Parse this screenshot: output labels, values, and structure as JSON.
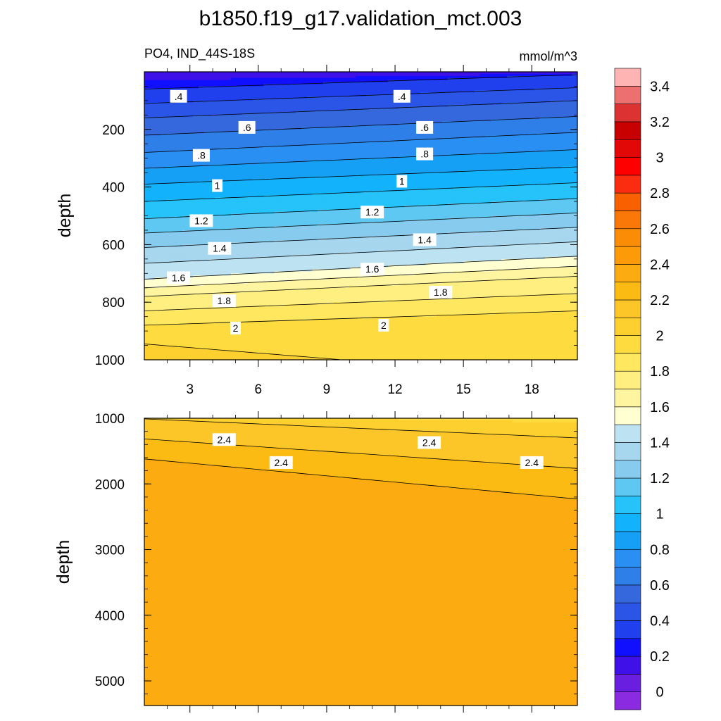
{
  "chart_data": {
    "type": "heatmap",
    "title": "b1850.f19_g17.validation_mct.003",
    "subtitle_left": "PO4, IND_44S-18S",
    "subtitle_right": "mmol/m^3",
    "xlim": [
      1,
      20
    ],
    "x_ticks": [
      "3",
      "6",
      "9",
      "12",
      "15",
      "18"
    ],
    "x_tick_values": [
      3,
      6,
      9,
      12,
      15,
      18
    ],
    "panels": [
      {
        "ylabel": "depth",
        "ylim": [
          0,
          1000
        ],
        "y_ticks": [
          "200",
          "400",
          "600",
          "800",
          "1000"
        ],
        "y_tick_values": [
          200,
          400,
          600,
          800,
          1000
        ],
        "contour_labels": [
          {
            "text": ".4",
            "x": 2.5,
            "y": 85
          },
          {
            "text": ".4",
            "x": 12.3,
            "y": 85
          },
          {
            "text": ".6",
            "x": 5.5,
            "y": 193
          },
          {
            "text": ".6",
            "x": 13.3,
            "y": 193
          },
          {
            "text": ".8",
            "x": 3.5,
            "y": 290
          },
          {
            "text": ".8",
            "x": 13.3,
            "y": 285
          },
          {
            "text": "1",
            "x": 4.2,
            "y": 395
          },
          {
            "text": "1",
            "x": 12.3,
            "y": 380
          },
          {
            "text": "1.2",
            "x": 3.5,
            "y": 517
          },
          {
            "text": "1.2",
            "x": 11,
            "y": 487
          },
          {
            "text": "1.4",
            "x": 4.3,
            "y": 613
          },
          {
            "text": "1.4",
            "x": 13.3,
            "y": 583
          },
          {
            "text": "1.6",
            "x": 2.5,
            "y": 715
          },
          {
            "text": "1.6",
            "x": 11,
            "y": 685
          },
          {
            "text": "1.8",
            "x": 4.5,
            "y": 795
          },
          {
            "text": "1.8",
            "x": 14,
            "y": 765
          },
          {
            "text": "2",
            "x": 5,
            "y": 890
          },
          {
            "text": "2",
            "x": 11.5,
            "y": 880
          }
        ]
      },
      {
        "ylabel": "depth",
        "ylim": [
          1000,
          5375
        ],
        "y_ticks": [
          "1000",
          "2000",
          "3000",
          "4000",
          "5000"
        ],
        "y_tick_values": [
          1000,
          2000,
          3000,
          4000,
          5000
        ],
        "contour_labels": [
          {
            "text": "2.4",
            "x": 4.5,
            "y": 1325
          },
          {
            "text": "2.4",
            "x": 13.5,
            "y": 1370
          },
          {
            "text": "2.4",
            "x": 7,
            "y": 1675
          },
          {
            "text": "2.4",
            "x": 18,
            "y": 1675
          }
        ]
      }
    ],
    "colorbar": {
      "levels": [
        "0",
        "0.2",
        "0.4",
        "0.6",
        "0.8",
        "1",
        "1.2",
        "1.4",
        "1.6",
        "1.8",
        "2",
        "2.2",
        "2.4",
        "2.6",
        "2.8",
        "3",
        "3.2",
        "3.4"
      ],
      "level_values": [
        0,
        0.1,
        0.2,
        0.3,
        0.4,
        0.5,
        0.6,
        0.7,
        0.8,
        0.9,
        1.0,
        1.1,
        1.2,
        1.3,
        1.4,
        1.5,
        1.6,
        1.7,
        1.8,
        1.9,
        2.0,
        2.1,
        2.2,
        2.3,
        2.4,
        2.5,
        2.6,
        2.7,
        2.8,
        2.9,
        3.0,
        3.1,
        3.2,
        3.3,
        3.4,
        3.5
      ],
      "colors": [
        "#8a2be2",
        "#6a1fe0",
        "#3f10e8",
        "#1010ff",
        "#2040ee",
        "#2a55e6",
        "#3568dc",
        "#2f7fe8",
        "#2a8ff2",
        "#16a0f5",
        "#12b2fc",
        "#25c3fa",
        "#5fc8f2",
        "#87cbee",
        "#a7d6ef",
        "#bde3f3",
        "#ffffd2",
        "#fff5a0",
        "#ffef80",
        "#ffe860",
        "#fedc40",
        "#fdd030",
        "#fcc628",
        "#fcbb12",
        "#fcab10",
        "#fc9a08",
        "#fb8c05",
        "#fa7808",
        "#f86000",
        "#fc2c10",
        "#ff0000",
        "#e20808",
        "#c80000",
        "#dc3232",
        "#ec7070",
        "#ffb4b4"
      ]
    }
  }
}
